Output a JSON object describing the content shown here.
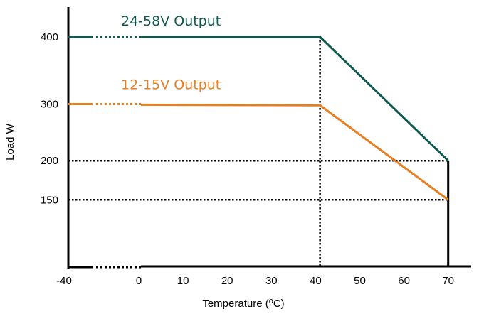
{
  "chart_data": {
    "type": "line",
    "xlabel": "Temperature (°C)",
    "xlabel_parts": [
      "Temperature (",
      "o",
      "C)"
    ],
    "ylabel": "Load W",
    "x_ticks": [
      "-40",
      "0",
      "10",
      "20",
      "30",
      "40",
      "50",
      "60",
      "70"
    ],
    "y_ticks": [
      "400",
      "300",
      "200",
      "150"
    ],
    "x_axis_break": true,
    "grid": false,
    "series": [
      {
        "name": "24-58V Output",
        "color": "#0f5a50",
        "points": [
          [
            -40,
            400
          ],
          [
            41,
            400
          ],
          [
            70,
            210
          ]
        ]
      },
      {
        "name": "12-15V Output",
        "color": "#e67e22",
        "points": [
          [
            -40,
            297
          ],
          [
            41,
            295
          ],
          [
            70,
            150
          ]
        ]
      }
    ],
    "reference_lines": [
      {
        "axis": "y",
        "value": 210,
        "from_x": -40,
        "to_x": 70
      },
      {
        "axis": "y",
        "value": 150,
        "from_x": -40,
        "to_x": 70
      },
      {
        "axis": "x",
        "value": 41,
        "from_y": 0,
        "to_y": 400
      },
      {
        "axis": "x",
        "value": 70,
        "from_y": 0,
        "to_y": 210
      }
    ]
  }
}
